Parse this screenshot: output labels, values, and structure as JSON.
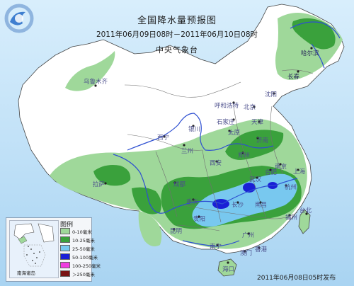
{
  "title": "全国降水量预报图",
  "period": "2011年06月09日08时－2011年06月10日08时",
  "agency": "中央气象台",
  "issued": "2011年06月08日05时发布",
  "legend": {
    "title": "图例",
    "items": [
      {
        "label": "0-10毫米",
        "color": "#9fd89a"
      },
      {
        "label": "10-25毫米",
        "color": "#3aa13c"
      },
      {
        "label": "25-50毫米",
        "color": "#78c8ef"
      },
      {
        "label": "50-100毫米",
        "color": "#1a1fd6"
      },
      {
        "label": "100-250毫米",
        "color": "#ef3be0"
      },
      {
        "label": "＞250毫米",
        "color": "#7a1414"
      }
    ]
  },
  "inset_label": "南海诸岛",
  "cities": {
    "urumqi": "乌鲁木齐",
    "harbin": "哈尔滨",
    "changchun": "长春",
    "shenyang": "沈阳",
    "hohhot": "呼和浩特",
    "beijing": "北京",
    "tianjin": "天津",
    "shijiazhuang": "石家庄",
    "taiyuan": "太原",
    "jinan": "济南",
    "yinchuan": "银川",
    "xining": "西宁",
    "lanzhou": "兰州",
    "zhengzhou": "郑州",
    "xian": "西安",
    "hefei": "合肥",
    "nanjing": "南京",
    "shanghai": "上海",
    "lhasa": "拉萨",
    "chengdu": "成都",
    "wuhan": "武汉",
    "hangzhou": "杭州",
    "chongqing": "重庆",
    "changsha": "长沙",
    "nanchang": "南昌",
    "fuzhou": "福州",
    "guiyang": "贵阳",
    "kunming": "昆明",
    "nanning": "南宁",
    "guangzhou": "广州",
    "hongkong": "香港",
    "macau": "澳门",
    "haikou": "海口",
    "taipei": "台北"
  },
  "colors": {
    "land": "#ffffff",
    "sea": "#bfe0f7",
    "river": "#2d4fd1",
    "border": "#5a5a5a"
  }
}
